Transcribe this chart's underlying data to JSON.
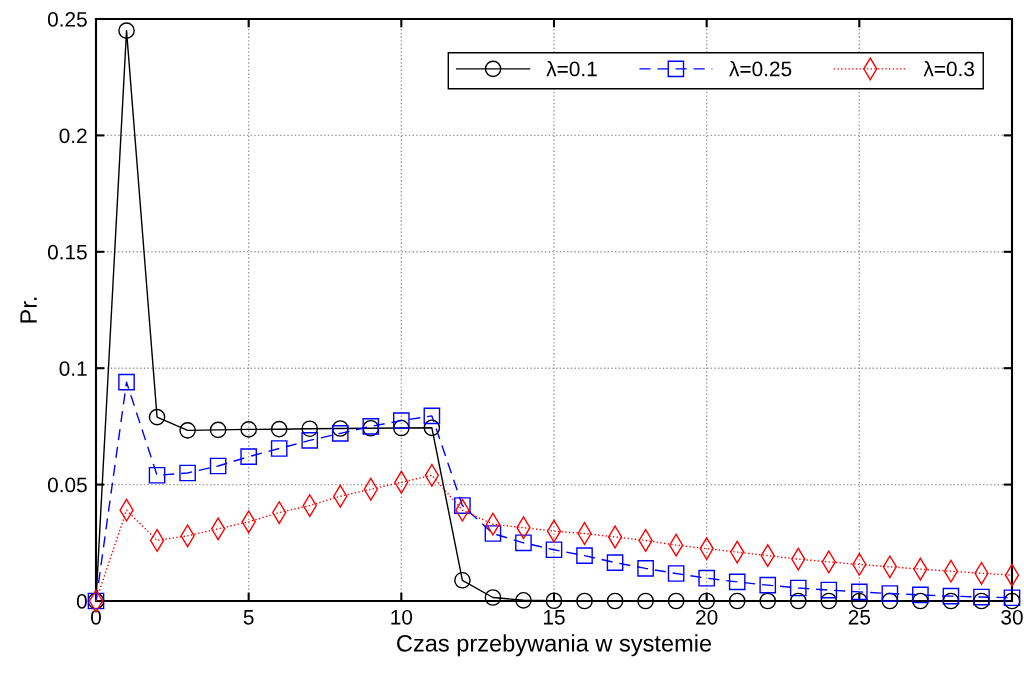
{
  "chart_data": {
    "type": "line",
    "xlabel": "Czas przebywania w systemie",
    "ylabel": "Pr.",
    "x": [
      0,
      1,
      2,
      3,
      4,
      5,
      6,
      7,
      8,
      9,
      10,
      11,
      12,
      13,
      14,
      15,
      16,
      17,
      18,
      19,
      20,
      21,
      22,
      23,
      24,
      25,
      26,
      27,
      28,
      29,
      30
    ],
    "series": [
      {
        "name": "λ=0.1",
        "color": "#000000",
        "marker": "circle",
        "line_style": "solid",
        "values": [
          0,
          0.245,
          0.079,
          0.0733,
          0.0735,
          0.0737,
          0.0738,
          0.074,
          0.0741,
          0.0742,
          0.0743,
          0.0744,
          0.0089,
          0.0015,
          0.0003,
          0.0001,
          0,
          0,
          0,
          0,
          0,
          0,
          0,
          0,
          0,
          0,
          0,
          0,
          0,
          0,
          0
        ]
      },
      {
        "name": "λ=0.25",
        "color": "#0000ff",
        "marker": "square",
        "line_style": "dashed",
        "values": [
          0,
          0.094,
          0.054,
          0.055,
          0.058,
          0.062,
          0.0655,
          0.069,
          0.072,
          0.075,
          0.0775,
          0.0795,
          0.041,
          0.029,
          0.025,
          0.022,
          0.0195,
          0.0165,
          0.014,
          0.0118,
          0.0098,
          0.0082,
          0.0068,
          0.0056,
          0.0047,
          0.0039,
          0.0032,
          0.0026,
          0.0021,
          0.0017,
          0.0014
        ]
      },
      {
        "name": "λ=0.3",
        "color": "#ff0000",
        "marker": "diamond",
        "line_style": "dotted",
        "values": [
          0,
          0.039,
          0.026,
          0.028,
          0.031,
          0.034,
          0.038,
          0.041,
          0.045,
          0.048,
          0.051,
          0.054,
          0.039,
          0.033,
          0.0315,
          0.03,
          0.029,
          0.0275,
          0.026,
          0.024,
          0.0225,
          0.021,
          0.0195,
          0.018,
          0.0168,
          0.0157,
          0.0147,
          0.0137,
          0.0128,
          0.0119,
          0.0111
        ]
      }
    ],
    "xlim": [
      0,
      30
    ],
    "xticks": [
      0,
      5,
      10,
      15,
      20,
      25,
      30
    ],
    "ylim": [
      0,
      0.25
    ],
    "yticks": [
      0,
      0.05,
      0.1,
      0.15,
      0.2,
      0.25
    ],
    "grid": true,
    "legend": "top right"
  }
}
